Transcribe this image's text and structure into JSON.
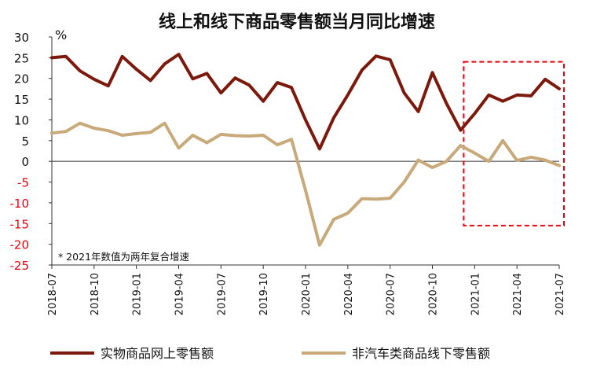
{
  "chart_data": {
    "type": "line",
    "title": "线上和线下商品零售额当月同比增速",
    "unit_label": "%",
    "note": "* 2021年数值为两年复合增速",
    "ylim": [
      -25,
      30
    ],
    "yticks": [
      30,
      25,
      20,
      15,
      10,
      5,
      0,
      -5,
      -10,
      -15,
      -20,
      -25
    ],
    "x": [
      "2018-07",
      "2018-08",
      "2018-09",
      "2018-10",
      "2018-11",
      "2018-12",
      "2019-01",
      "2019-02",
      "2019-03",
      "2019-04",
      "2019-05",
      "2019-06",
      "2019-07",
      "2019-08",
      "2019-09",
      "2019-10",
      "2019-11",
      "2019-12",
      "2020-01",
      "2020-02",
      "2020-03",
      "2020-04",
      "2020-05",
      "2020-06",
      "2020-07",
      "2020-08",
      "2020-09",
      "2020-10",
      "2020-11",
      "2020-12",
      "2021-01",
      "2021-02",
      "2021-03",
      "2021-04",
      "2021-05",
      "2021-06",
      "2021-07"
    ],
    "xtick_labels": [
      "2018-07",
      "2018-10",
      "2019-01",
      "2019-04",
      "2019-07",
      "2019-10",
      "2020-01",
      "2020-04",
      "2020-07",
      "2020-10",
      "2021-01",
      "2021-04",
      "2021-07"
    ],
    "series": [
      {
        "name": "实物商品网上零售额",
        "color": "#7b1a0c",
        "values": [
          25.0,
          25.3,
          21.8,
          19.8,
          18.2,
          25.3,
          22.2,
          19.5,
          23.5,
          25.8,
          19.9,
          21.2,
          16.5,
          20.1,
          18.4,
          14.5,
          19.0,
          17.8,
          10.0,
          3.0,
          10.5,
          16.0,
          22.0,
          25.4,
          24.5,
          16.5,
          12.0,
          21.4,
          14.0,
          7.5,
          11.5,
          16.0,
          14.5,
          16.0,
          15.8,
          19.8,
          17.5
        ]
      },
      {
        "name": "非汽车类商品线下零售额",
        "color": "#c8a97a",
        "values": [
          6.8,
          7.2,
          9.2,
          8.0,
          7.4,
          6.3,
          6.7,
          7.0,
          9.2,
          3.2,
          6.3,
          4.5,
          6.5,
          6.2,
          6.1,
          6.3,
          4.0,
          5.3,
          -7.0,
          -20.2,
          -14.0,
          -12.5,
          -9.0,
          -9.1,
          -8.9,
          -5.0,
          0.3,
          -1.5,
          0.0,
          3.8,
          2.0,
          0.0,
          5.0,
          0.2,
          1.0,
          0.3,
          -1.0
        ]
      }
    ],
    "highlight_box": {
      "x_start": "2020-12",
      "x_end": "2021-07",
      "y_top": 24,
      "y_bottom": -15.5,
      "color": "#e8000d",
      "style": "dashed"
    }
  }
}
